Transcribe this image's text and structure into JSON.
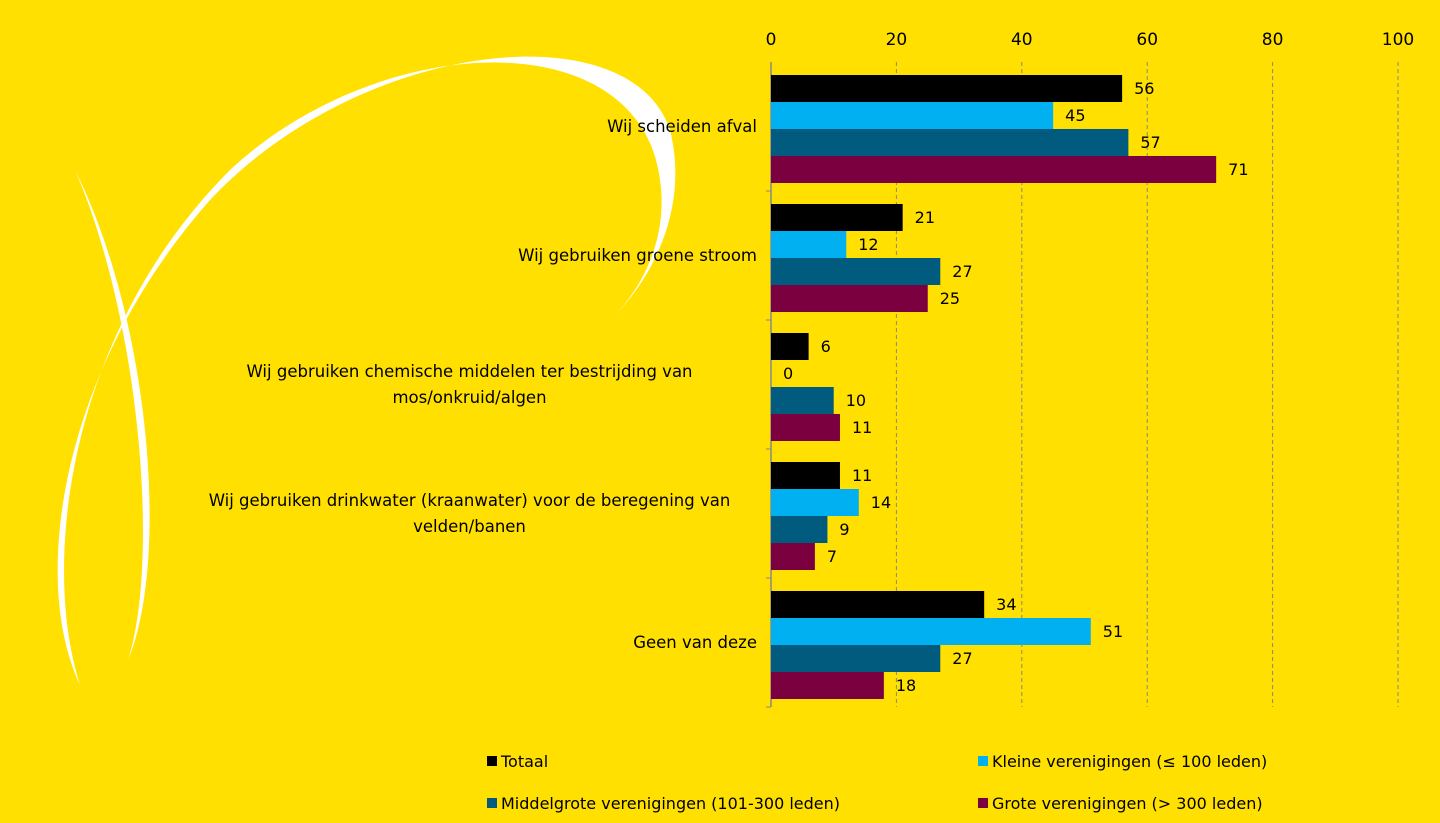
{
  "chart_data": {
    "type": "barh",
    "categories": [
      "Wij scheiden afval",
      "Wij gebruiken groene stroom",
      "Wij gebruiken chemische middelen ter bestrijding van mos/onkruid/algen",
      "Wij gebruiken drinkwater (kraanwater) voor de beregening van velden/banen",
      "Geen van deze"
    ],
    "series": [
      {
        "name": "Totaal",
        "color": "#000000",
        "values": [
          56,
          21,
          6,
          11,
          34
        ]
      },
      {
        "name": "Kleine verenigingen (≤ 100 leden)",
        "color": "#00B0F0",
        "values": [
          45,
          12,
          0,
          14,
          51
        ]
      },
      {
        "name": "Middelgrote verenigingen (101-300 leden)",
        "color": "#005B7F",
        "values": [
          57,
          27,
          10,
          9,
          27
        ]
      },
      {
        "name": "Grote verenigingen (> 300 leden)",
        "color": "#7B003F",
        "values": [
          71,
          25,
          11,
          7,
          18
        ]
      }
    ],
    "xlim": [
      0,
      100
    ],
    "xticks": [
      0,
      20,
      40,
      60,
      80,
      100
    ],
    "grid": true
  }
}
